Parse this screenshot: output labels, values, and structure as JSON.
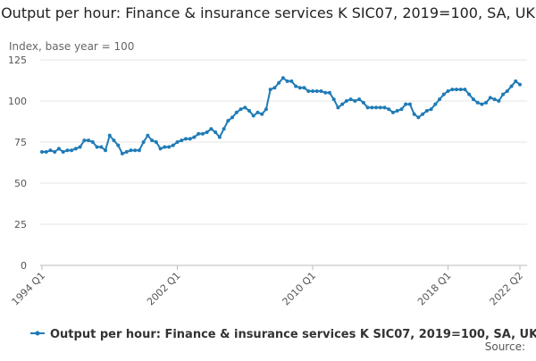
{
  "chart_data": {
    "type": "line",
    "title": "Output per hour: Finance & insurance services K SIC07, 2019=100, SA, UK",
    "y_label": "Index, base year = 100",
    "source": "Source:",
    "categories": [
      "1994 Q1",
      null,
      null,
      null,
      null,
      null,
      null,
      null,
      null,
      null,
      null,
      null,
      null,
      null,
      null,
      null,
      null,
      null,
      null,
      null,
      null,
      null,
      null,
      null,
      null,
      null,
      null,
      null,
      null,
      null,
      null,
      null,
      "2002 Q1",
      null,
      null,
      null,
      null,
      null,
      null,
      null,
      null,
      null,
      null,
      null,
      null,
      null,
      null,
      null,
      null,
      null,
      null,
      null,
      null,
      null,
      null,
      null,
      null,
      null,
      null,
      null,
      null,
      null,
      null,
      null,
      "2010 Q1",
      null,
      null,
      null,
      null,
      null,
      null,
      null,
      null,
      null,
      null,
      null,
      null,
      null,
      null,
      null,
      null,
      null,
      null,
      null,
      null,
      null,
      null,
      null,
      null,
      null,
      null,
      null,
      null,
      null,
      null,
      null,
      "2018 Q1",
      null,
      null,
      null,
      null,
      null,
      null,
      null,
      null,
      null,
      null,
      null,
      null,
      null,
      null,
      null,
      null,
      "2022 Q2"
    ],
    "series": [
      {
        "name": "Output per hour: Finance & insurance services K SIC07, 2019=100, SA, UK",
        "color": "#1f7bb6",
        "values": [
          69,
          69,
          70,
          69,
          71,
          69,
          70,
          70,
          71,
          72,
          76,
          76,
          75,
          72,
          72,
          70,
          79,
          76,
          73,
          68,
          69,
          70,
          70,
          70,
          75,
          79,
          76,
          75,
          71,
          72,
          72,
          73,
          75,
          76,
          77,
          77,
          78,
          80,
          80,
          81,
          83,
          81,
          78,
          83,
          88,
          90,
          93,
          95,
          96,
          94,
          91,
          93,
          92,
          95,
          107,
          108,
          111,
          114,
          112,
          112,
          109,
          108,
          108,
          106,
          106,
          106,
          106,
          105,
          105,
          101,
          96,
          98,
          100,
          101,
          100,
          101,
          99,
          96,
          96,
          96,
          96,
          96,
          95,
          93,
          94,
          95,
          98,
          98,
          92,
          90,
          92,
          94,
          95,
          98,
          101,
          104,
          106,
          107,
          107,
          107,
          107,
          104,
          101,
          99,
          98,
          99,
          102,
          101,
          100,
          104,
          106,
          109,
          112,
          110
        ]
      }
    ],
    "ylim": [
      0,
      125
    ],
    "yticks": [
      0,
      25,
      50,
      75,
      100,
      125
    ],
    "grid": true,
    "legend": "bottom"
  }
}
